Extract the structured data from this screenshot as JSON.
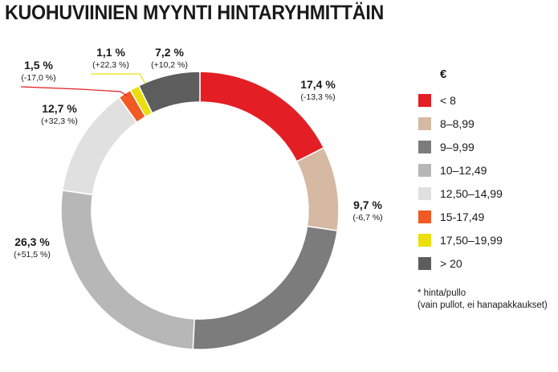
{
  "chart_data": {
    "type": "pie",
    "title": "KUOHUVIINIEN MYYNTI HINTARYHMITTÄIN",
    "unit": "%",
    "legend_title": "€",
    "legend_position": "right",
    "slices": [
      {
        "category": "< 8",
        "share": 17.4,
        "share_label": "17,4 %",
        "change_label": "(-13,3 %)",
        "color": "#e31e24"
      },
      {
        "category": "8–8,99",
        "share": 9.7,
        "share_label": "9,7 %",
        "change_label": "(-6,7 %)",
        "color": "#d5b9a2"
      },
      {
        "category": "9–9,99",
        "share": 23.3,
        "color": "#7c7c7c"
      },
      {
        "category": "10–12,49",
        "share": 26.3,
        "share_label": "26,3 %",
        "change_label": "(+51,5 %)",
        "color": "#b7b7b7"
      },
      {
        "category": "12,50–14,99",
        "share": 12.7,
        "share_label": "12,7 %",
        "change_label": "(+32,3 %)",
        "color": "#e0e0e0"
      },
      {
        "category": "15-17,49",
        "share": 1.5,
        "share_label": "1,5 %",
        "change_label": "(-17,0 %)",
        "color": "#f15a22"
      },
      {
        "category": "17,50–19,99",
        "share": 1.1,
        "share_label": "1,1 %",
        "change_label": "(+22,3 %)",
        "color": "#ecdf0e"
      },
      {
        "category": "> 20",
        "share": 7.2,
        "share_label": "7,2 %",
        "change_label": "(+10,2 %)",
        "color": "#5d5d5d"
      }
    ]
  },
  "footnote": {
    "line1": "* hinta/pullo",
    "line2": "(vain pullot, ei hanapakkaukset)"
  }
}
